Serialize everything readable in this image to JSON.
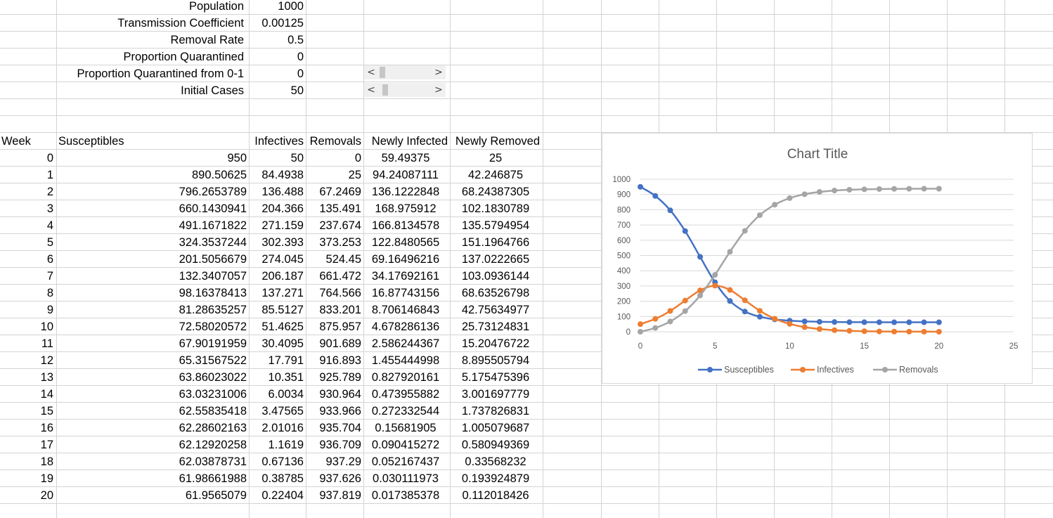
{
  "params": [
    {
      "label": "Population",
      "value": "1000"
    },
    {
      "label": "Transmission Coefficient",
      "value": "0.00125"
    },
    {
      "label": "Removal Rate",
      "value": "0.5"
    },
    {
      "label": "Proportion Quarantined",
      "value": "0"
    },
    {
      "label": "Proportion Quarantined from 0-1",
      "value": "0"
    },
    {
      "label": "Initial Cases",
      "value": "50"
    }
  ],
  "scroll_arrows": {
    "left": "<",
    "right": ">"
  },
  "table": {
    "headers": [
      "Week",
      "Susceptibles",
      "Infectives",
      "Removals",
      "Newly Infected",
      "Newly Removed"
    ],
    "rows": [
      [
        "0",
        "950",
        "50",
        "0",
        "59.49375",
        "25"
      ],
      [
        "1",
        "890.50625",
        "84.4938",
        "25",
        "94.24087111",
        "42.246875"
      ],
      [
        "2",
        "796.2653789",
        "136.488",
        "67.2469",
        "136.1222848",
        "68.24387305"
      ],
      [
        "3",
        "660.1430941",
        "204.366",
        "135.491",
        "168.975912",
        "102.1830789"
      ],
      [
        "4",
        "491.1671822",
        "271.159",
        "237.674",
        "166.8134578",
        "135.5794954"
      ],
      [
        "5",
        "324.3537244",
        "302.393",
        "373.253",
        "122.8480565",
        "151.1964766"
      ],
      [
        "6",
        "201.5056679",
        "274.045",
        "524.45",
        "69.16496216",
        "137.0222665"
      ],
      [
        "7",
        "132.3407057",
        "206.187",
        "661.472",
        "34.17692161",
        "103.0936144"
      ],
      [
        "8",
        "98.16378413",
        "137.271",
        "764.566",
        "16.87743156",
        "68.63526798"
      ],
      [
        "9",
        "81.28635257",
        "85.5127",
        "833.201",
        "8.706146843",
        "42.75634977"
      ],
      [
        "10",
        "72.58020572",
        "51.4625",
        "875.957",
        "4.678286136",
        "25.73124831"
      ],
      [
        "11",
        "67.90191959",
        "30.4095",
        "901.689",
        "2.586244367",
        "15.20476722"
      ],
      [
        "12",
        "65.31567522",
        "17.791",
        "916.893",
        "1.455444998",
        "8.895505794"
      ],
      [
        "13",
        "63.86023022",
        "10.351",
        "925.789",
        "0.827920161",
        "5.175475396"
      ],
      [
        "14",
        "63.03231006",
        "6.0034",
        "930.964",
        "0.473955882",
        "3.001697779"
      ],
      [
        "15",
        "62.55835418",
        "3.47565",
        "933.966",
        "0.272332544",
        "1.737826831"
      ],
      [
        "16",
        "62.28602163",
        "2.01016",
        "935.704",
        "0.15681905",
        "1.005079687"
      ],
      [
        "17",
        "62.12920258",
        "1.1619",
        "936.709",
        "0.090415272",
        "0.580949369"
      ],
      [
        "18",
        "62.03878731",
        "0.67136",
        "937.29",
        "0.052167437",
        "0.33568232"
      ],
      [
        "19",
        "61.98661988",
        "0.38785",
        "937.626",
        "0.030111973",
        "0.193924879"
      ],
      [
        "20",
        "61.9565079",
        "0.22404",
        "937.819",
        "0.017385378",
        "0.112018426"
      ]
    ]
  },
  "chart_data": {
    "type": "line",
    "title": "Chart Title",
    "x": [
      0,
      1,
      2,
      3,
      4,
      5,
      6,
      7,
      8,
      9,
      10,
      11,
      12,
      13,
      14,
      15,
      16,
      17,
      18,
      19,
      20
    ],
    "xlim": [
      0,
      25
    ],
    "ylim": [
      0,
      1000
    ],
    "xticks": [
      "0",
      "5",
      "10",
      "15",
      "20",
      "25"
    ],
    "yticks": [
      "0",
      "100",
      "200",
      "300",
      "400",
      "500",
      "600",
      "700",
      "800",
      "900",
      "1000"
    ],
    "grid": true,
    "legend_position": "bottom",
    "series": [
      {
        "name": "Susceptibles",
        "color": "#4472c4",
        "values": [
          950,
          890.51,
          796.27,
          660.14,
          491.17,
          324.35,
          201.51,
          132.34,
          98.16,
          81.29,
          72.58,
          67.9,
          65.32,
          63.86,
          63.03,
          62.56,
          62.29,
          62.13,
          62.04,
          61.99,
          61.96
        ]
      },
      {
        "name": "Infectives",
        "color": "#ed7d31",
        "values": [
          50,
          84.49,
          136.49,
          204.37,
          271.16,
          302.39,
          274.05,
          206.19,
          137.27,
          85.51,
          51.46,
          30.41,
          17.79,
          10.35,
          6.0,
          3.48,
          2.01,
          1.16,
          0.67,
          0.39,
          0.22
        ]
      },
      {
        "name": "Removals",
        "color": "#a5a5a5",
        "values": [
          0,
          25,
          67.25,
          135.49,
          237.67,
          373.25,
          524.45,
          661.47,
          764.57,
          833.2,
          875.96,
          901.69,
          916.89,
          925.79,
          930.96,
          933.97,
          935.7,
          936.71,
          937.29,
          937.63,
          937.82
        ]
      }
    ]
  }
}
